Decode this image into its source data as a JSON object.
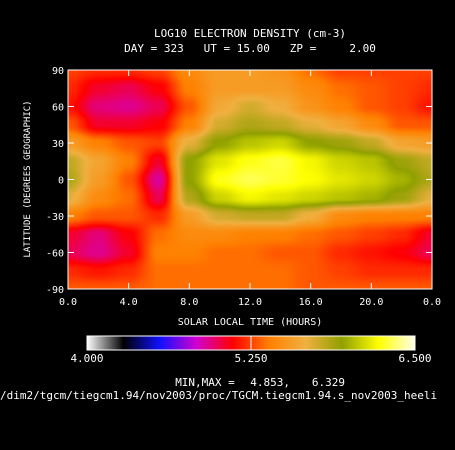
{
  "chart_data": {
    "type": "heatmap",
    "title": "LOG10 ELECTRON DENSITY (cm-3)",
    "subtitle": "DAY = 323   UT = 15.00   ZP =     2.00",
    "xlabel": "SOLAR LOCAL TIME (HOURS)",
    "ylabel": "LATITUDE (DEGREES GEOGRAPHIC)",
    "xlim": [
      0,
      24
    ],
    "ylim": [
      -90,
      90
    ],
    "x_ticks": [
      "0.0",
      "4.0",
      "8.0",
      "12.0",
      "16.0",
      "20.0",
      "0.0"
    ],
    "y_ticks": [
      "90",
      "60",
      "30",
      "0",
      "-30",
      "-60",
      "-90"
    ],
    "colorbar": {
      "min_label": "4.000",
      "mid_label": "5.250",
      "max_label": "6.500",
      "min": 4.0,
      "max": 6.5,
      "colors": [
        "#ffffff",
        "#000000",
        "#1010ff",
        "#d000d0",
        "#ff0000",
        "#ff8000",
        "#f0b040",
        "#90a000",
        "#ffff00",
        "#ffffe8"
      ]
    },
    "minmax": {
      "label": "MIN,MAX =",
      "min": "4.853,",
      "max": "6.329"
    },
    "path": "/dim2/tgcm/tiegcm1.94/nov2003/proc/TGCM.tiegcm1.94.s_nov2003_heeli",
    "grid_x": [
      0,
      2,
      4,
      6,
      8,
      10,
      12,
      14,
      16,
      18,
      20,
      22,
      24
    ],
    "grid_y": [
      90,
      75,
      60,
      45,
      30,
      15,
      0,
      -15,
      -30,
      -45,
      -60,
      -75,
      -90
    ],
    "z": [
      [
        5.25,
        5.2,
        5.2,
        5.25,
        5.45,
        5.55,
        5.55,
        5.5,
        5.35,
        5.25,
        5.25,
        5.25,
        5.25
      ],
      [
        5.2,
        5.05,
        5.0,
        5.1,
        5.4,
        5.55,
        5.55,
        5.55,
        5.45,
        5.35,
        5.3,
        5.25,
        5.2
      ],
      [
        5.15,
        4.95,
        4.92,
        5.0,
        5.3,
        5.62,
        5.75,
        5.65,
        5.5,
        5.4,
        5.3,
        5.25,
        5.15
      ],
      [
        5.3,
        5.05,
        5.05,
        5.1,
        5.4,
        5.75,
        5.85,
        5.8,
        5.7,
        5.6,
        5.45,
        5.3,
        5.3
      ],
      [
        5.55,
        5.4,
        5.3,
        5.25,
        5.7,
        5.95,
        6.05,
        6.1,
        5.95,
        5.9,
        5.8,
        5.6,
        5.55
      ],
      [
        5.8,
        5.6,
        5.4,
        5.05,
        5.95,
        6.15,
        6.25,
        6.3,
        6.2,
        6.1,
        6.05,
        5.9,
        5.8
      ],
      [
        5.85,
        5.55,
        5.3,
        4.9,
        5.95,
        6.25,
        6.32,
        6.28,
        6.22,
        6.15,
        6.1,
        6.0,
        5.85
      ],
      [
        5.7,
        5.45,
        5.35,
        5.0,
        5.85,
        6.1,
        6.2,
        6.15,
        6.1,
        6.05,
        6.0,
        5.9,
        5.7
      ],
      [
        5.4,
        5.3,
        5.3,
        5.2,
        5.55,
        5.75,
        5.8,
        5.8,
        5.65,
        5.45,
        5.4,
        5.4,
        5.4
      ],
      [
        5.05,
        4.95,
        5.1,
        5.35,
        5.45,
        5.45,
        5.4,
        5.4,
        5.35,
        5.3,
        5.25,
        5.2,
        5.05
      ],
      [
        5.0,
        4.92,
        5.05,
        5.4,
        5.4,
        5.35,
        5.35,
        5.3,
        5.3,
        5.2,
        5.15,
        5.1,
        5.0
      ],
      [
        5.2,
        5.15,
        5.2,
        5.35,
        5.35,
        5.35,
        5.35,
        5.35,
        5.3,
        5.25,
        5.2,
        5.2,
        5.2
      ],
      [
        5.3,
        5.3,
        5.3,
        5.35,
        5.35,
        5.35,
        5.35,
        5.35,
        5.3,
        5.3,
        5.3,
        5.3,
        5.3
      ]
    ]
  }
}
